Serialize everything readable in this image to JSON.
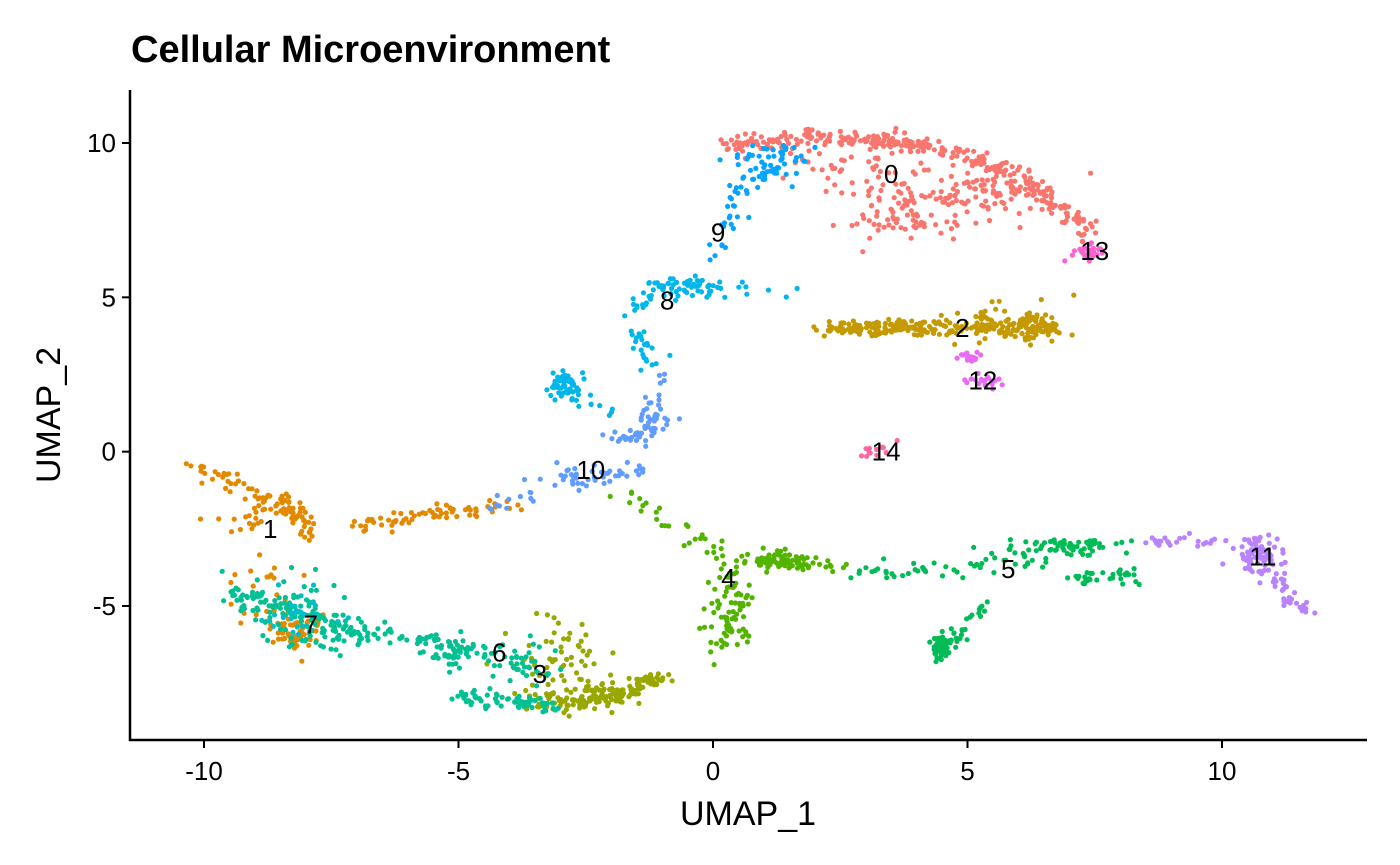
{
  "chart_data": {
    "type": "scatter",
    "title": "Cellular Microenvironment",
    "xlabel": "UMAP_1",
    "ylabel": "UMAP_2",
    "xlim": [
      -11.5,
      12.8
    ],
    "ylim": [
      -9.3,
      11.8
    ],
    "xticks": [
      -10,
      -5,
      0,
      5,
      10
    ],
    "yticks": [
      -5,
      0,
      5,
      10
    ],
    "xtick_labels": [
      "-10",
      "-5",
      "0",
      "5",
      "10"
    ],
    "ytick_labels": [
      "-5",
      "0",
      "5",
      "10"
    ],
    "grid": false,
    "legend": "none",
    "clusters": [
      {
        "id": "0",
        "color": "#F8766D",
        "label_pos": [
          3.5,
          9.0
        ],
        "segments": [
          [
            0.2,
            9.9,
            2.0,
            10.2
          ],
          [
            2.0,
            10.2,
            4.0,
            10.0
          ],
          [
            4.0,
            10.0,
            6.0,
            9.0
          ],
          [
            6.0,
            9.0,
            7.5,
            7.0
          ]
        ],
        "blobs": [
          [
            2.5,
            9.4,
            1.5,
            0.9
          ],
          [
            4.2,
            8.3,
            1.2,
            0.9
          ],
          [
            3.5,
            7.5,
            1.0,
            0.7
          ],
          [
            5.5,
            8.5,
            1.0,
            0.6
          ]
        ],
        "n": 520
      },
      {
        "id": "1",
        "color": "#E38900",
        "label_pos": [
          -8.7,
          -2.5
        ],
        "segments": [
          [
            -10.3,
            -0.4,
            -8.5,
            -1.6
          ],
          [
            -8.5,
            -1.6,
            -7.8,
            -2.7
          ],
          [
            -7.0,
            -2.5,
            -5.5,
            -2.0
          ],
          [
            -5.5,
            -2.0,
            -4.0,
            -1.8
          ]
        ],
        "blobs": [
          [
            -9.0,
            -2.0,
            0.7,
            0.9
          ],
          [
            -8.8,
            -4.5,
            0.6,
            1.2
          ],
          [
            -8.2,
            -5.8,
            0.5,
            0.6
          ]
        ],
        "n": 260
      },
      {
        "id": "2",
        "color": "#C49A00",
        "label_pos": [
          4.9,
          4.0
        ],
        "segments": [
          [
            2.2,
            4.0,
            6.7,
            4.0
          ]
        ],
        "blobs": [
          [
            3.3,
            4.0,
            1.0,
            0.25
          ],
          [
            5.5,
            4.2,
            1.1,
            0.6
          ],
          [
            6.3,
            4.0,
            0.4,
            0.5
          ]
        ],
        "n": 330
      },
      {
        "id": "3",
        "color": "#99A800",
        "label_pos": [
          -3.4,
          -7.2
        ],
        "segments": [
          [
            -3.8,
            -8.2,
            -2.0,
            -8.0
          ],
          [
            -2.0,
            -8.0,
            -1.0,
            -7.3
          ]
        ],
        "blobs": [
          [
            -3.0,
            -6.7,
            0.9,
            1.2
          ],
          [
            -2.4,
            -7.8,
            0.8,
            0.5
          ]
        ],
        "n": 240
      },
      {
        "id": "4",
        "color": "#53B400",
        "label_pos": [
          0.3,
          -4.1
        ],
        "segments": [
          [
            -1.8,
            -1.3,
            0.0,
            -3.2
          ],
          [
            0.0,
            -3.2,
            0.6,
            -4.8
          ],
          [
            0.6,
            -4.8,
            0.0,
            -6.5
          ],
          [
            1.0,
            -3.3,
            2.5,
            -3.8
          ]
        ],
        "blobs": [
          [
            0.3,
            -5.4,
            0.5,
            1.0
          ],
          [
            1.2,
            -3.6,
            0.6,
            0.3
          ]
        ],
        "n": 200
      },
      {
        "id": "5",
        "color": "#00BC56",
        "label_pos": [
          5.8,
          -3.8
        ],
        "segments": [
          [
            2.8,
            -3.9,
            5.5,
            -3.7
          ],
          [
            5.5,
            -3.7,
            8.2,
            -2.8
          ],
          [
            4.5,
            -6.5,
            5.5,
            -4.8
          ],
          [
            7.0,
            -4.1,
            8.2,
            -4.0
          ]
        ],
        "blobs": [
          [
            6.8,
            -3.1,
            1.0,
            0.3
          ],
          [
            4.45,
            -6.3,
            0.12,
            0.35
          ]
        ],
        "n": 230
      },
      {
        "id": "6",
        "color": "#00C094",
        "label_pos": [
          -4.2,
          -6.5
        ],
        "segments": [
          [
            -9.5,
            -4.5,
            -7.0,
            -5.8
          ],
          [
            -7.0,
            -5.8,
            -4.5,
            -6.5
          ],
          [
            -5.0,
            -7.9,
            -3.0,
            -8.3
          ]
        ],
        "blobs": [
          [
            -8.5,
            -4.8,
            0.9,
            0.8
          ],
          [
            -7.5,
            -6.0,
            0.8,
            0.5
          ],
          [
            -5.0,
            -6.6,
            0.6,
            0.4
          ],
          [
            -3.8,
            -7.0,
            0.6,
            0.8
          ]
        ],
        "n": 360
      },
      {
        "id": "7",
        "color": "#00BFC4",
        "label_pos": [
          -7.9,
          -5.6
        ],
        "segments": [],
        "blobs": [
          [
            -8.2,
            -5.4,
            0.7,
            0.9
          ]
        ],
        "n": 30
      },
      {
        "id": "8",
        "color": "#00B6EB",
        "label_pos": [
          -0.9,
          4.9
        ],
        "segments": [
          [
            -1.3,
            5.4,
            1.6,
            5.2
          ],
          [
            -1.6,
            4.5,
            -1.0,
            5.4
          ],
          [
            -1.6,
            4.2,
            -1.2,
            2.8
          ],
          [
            -3.2,
            2.3,
            -2.0,
            1.3
          ]
        ],
        "blobs": [
          [
            -2.9,
            2.2,
            0.3,
            0.4
          ],
          [
            -0.5,
            5.3,
            0.6,
            0.3
          ]
        ],
        "n": 170
      },
      {
        "id": "9",
        "color": "#06A4FF",
        "label_pos": [
          0.1,
          7.1
        ],
        "segments": [
          [
            0.1,
            6.3,
            0.5,
            8.5
          ],
          [
            0.5,
            8.5,
            1.5,
            9.5
          ],
          [
            0.9,
            9.6,
            2.0,
            9.9
          ]
        ],
        "blobs": [
          [
            1.0,
            9.3,
            0.7,
            0.6
          ]
        ],
        "n": 90
      },
      {
        "id": "10",
        "color": "#619CFF",
        "label_pos": [
          -2.4,
          -0.6
        ],
        "segments": [
          [
            -1.1,
            2.5,
            -1.3,
            0.5
          ],
          [
            -1.3,
            0.5,
            -1.9,
            0.5
          ],
          [
            -4.5,
            -1.8,
            -2.2,
            -0.8
          ],
          [
            -2.2,
            -0.8,
            -1.2,
            -0.5
          ]
        ],
        "blobs": [
          [
            -2.6,
            -0.8,
            0.8,
            0.35
          ],
          [
            -1.2,
            1.0,
            0.3,
            0.8
          ]
        ],
        "n": 120
      },
      {
        "id": "11",
        "color": "#B983FF",
        "label_pos": [
          10.8,
          -3.4
        ],
        "segments": [
          [
            8.4,
            -2.9,
            10.7,
            -2.9
          ],
          [
            10.7,
            -2.9,
            11.2,
            -4.6
          ],
          [
            11.2,
            -4.6,
            11.8,
            -5.2
          ]
        ],
        "blobs": [
          [
            10.7,
            -3.4,
            0.5,
            0.6
          ]
        ],
        "n": 130
      },
      {
        "id": "12",
        "color": "#E76BF3",
        "label_pos": [
          5.3,
          2.3
        ],
        "segments": [],
        "blobs": [
          [
            5.3,
            2.3,
            0.35,
            0.2
          ],
          [
            5.0,
            3.1,
            0.2,
            0.2
          ]
        ],
        "n": 40
      },
      {
        "id": "13",
        "color": "#FD61D1",
        "label_pos": [
          7.5,
          6.5
        ],
        "segments": [
          [
            7.0,
            6.3,
            7.7,
            6.6
          ]
        ],
        "blobs": [
          [
            7.4,
            6.5,
            0.25,
            0.15
          ]
        ],
        "n": 30
      },
      {
        "id": "14",
        "color": "#FF67A4",
        "label_pos": [
          3.4,
          0.0
        ],
        "segments": [
          [
            3.0,
            -0.1,
            3.5,
            0.3
          ]
        ],
        "blobs": [],
        "n": 12
      }
    ]
  }
}
